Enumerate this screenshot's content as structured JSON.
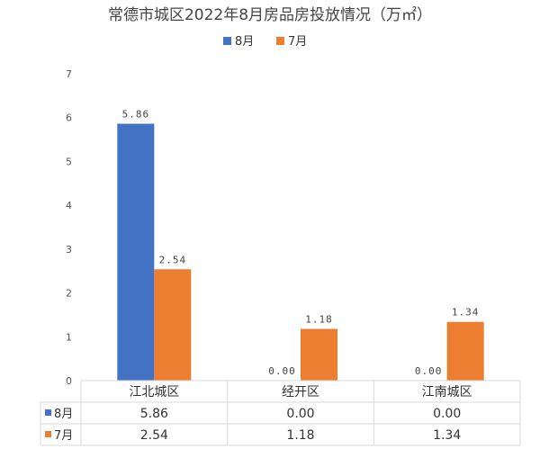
{
  "chart_data": {
    "type": "bar",
    "title": "常德市城区2022年8月房品房投放情况（万㎡）",
    "categories": [
      "江北城区",
      "经开区",
      "江南城区"
    ],
    "series": [
      {
        "name": "8月",
        "color": "#4472C4",
        "values": [
          5.86,
          0.0,
          0.0
        ],
        "labels": [
          "5.86",
          "0.00",
          "0.00"
        ]
      },
      {
        "name": "7月",
        "color": "#ED7D31",
        "values": [
          2.54,
          1.18,
          1.34
        ],
        "labels": [
          "2.54",
          "1.18",
          "1.34"
        ]
      }
    ],
    "ylim": [
      0,
      7
    ],
    "yticks": [
      "0",
      "1",
      "2",
      "3",
      "4",
      "5",
      "6",
      "7"
    ],
    "grid": false,
    "legend": "top-center",
    "data_table": true
  }
}
